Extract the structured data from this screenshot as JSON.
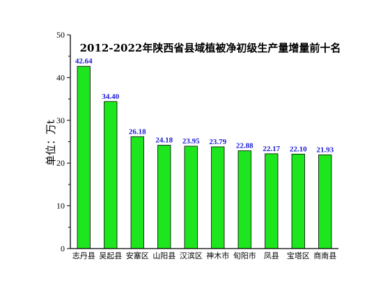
{
  "chart_data": {
    "type": "bar",
    "title": "2012-2022年陕西省县域植被净初级生产量增量前十名",
    "xlabel": "",
    "ylabel": "单位：万t",
    "ylim": [
      0,
      50
    ],
    "yticks": [
      0,
      10,
      20,
      30,
      40,
      50
    ],
    "categories": [
      "志丹县",
      "吴起县",
      "安塞区",
      "山阳县",
      "汉滨区",
      "神木市",
      "旬阳市",
      "凤县",
      "宝塔区",
      "商南县"
    ],
    "values": [
      42.64,
      34.4,
      26.18,
      24.18,
      23.95,
      23.79,
      22.88,
      22.17,
      22.1,
      21.93
    ],
    "data_labels": [
      "42.64",
      "34.40",
      "26.18",
      "24.18",
      "23.95",
      "23.79",
      "22.88",
      "22.17",
      "22.10",
      "21.93"
    ],
    "bar_color": "#1ee61e",
    "bar_edge_color": "#000000",
    "label_color": "#1a1ad6",
    "grid": false,
    "legend": "none"
  }
}
